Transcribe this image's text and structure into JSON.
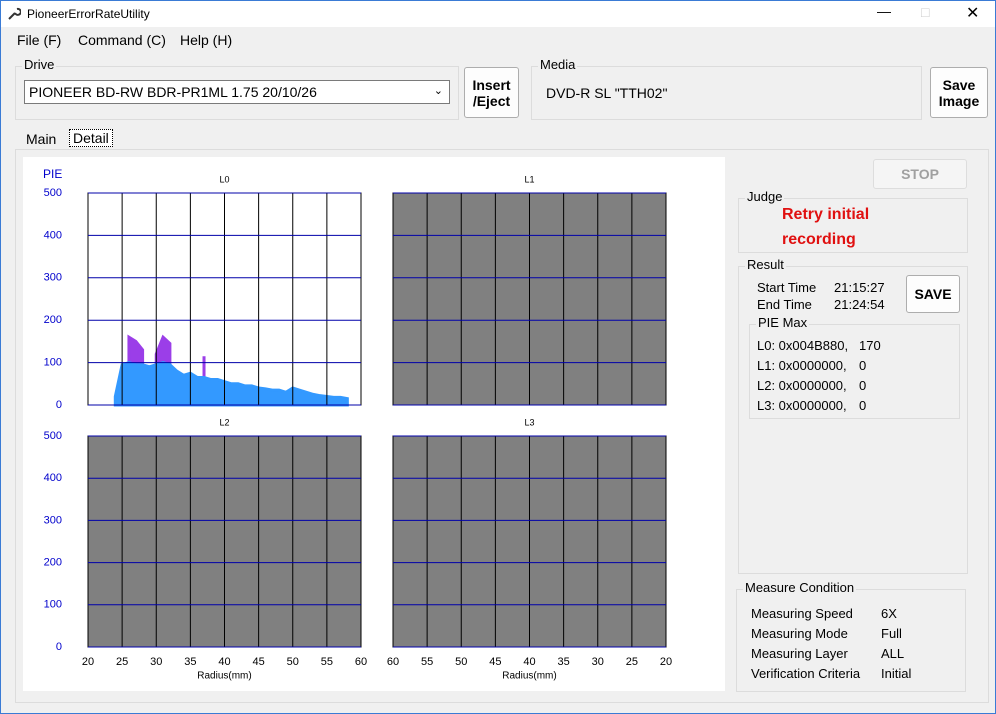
{
  "window": {
    "title": "PioneerErrorRateUtility"
  },
  "menu": [
    "File (F)",
    "Command (C)",
    "Help (H)"
  ],
  "drive": {
    "label": "Drive",
    "value": "PIONEER BD-RW BDR-PR1ML 1.75 20/10/26",
    "button": [
      "Insert",
      "/Eject"
    ]
  },
  "media": {
    "label": "Media",
    "value": "DVD-R SL \"TTH02\"",
    "button": [
      "Save",
      "Image"
    ]
  },
  "tabs": [
    "Main",
    "Detail"
  ],
  "chart_data": [
    {
      "type": "area",
      "title": "L0",
      "ylabel": "PIE",
      "x": [
        24,
        25,
        26,
        27,
        28,
        29,
        30,
        31,
        32,
        33,
        34,
        35,
        36,
        37,
        38,
        39,
        40,
        41,
        42,
        43,
        44,
        45,
        46,
        47,
        48,
        49,
        50,
        51,
        52,
        53,
        54,
        55,
        56,
        57,
        58
      ],
      "series": [
        {
          "color": "#9b3ee8",
          "values": [
            null,
            null,
            160,
            150,
            130,
            null,
            120,
            160,
            145,
            null,
            null,
            null,
            null,
            115,
            null,
            null,
            null,
            null,
            null,
            null,
            null,
            null,
            null,
            null,
            null,
            null,
            null,
            null,
            null,
            null,
            null,
            null,
            null,
            null,
            null
          ]
        },
        {
          "color": "#3399ff",
          "values": [
            20,
            95,
            100,
            95,
            95,
            90,
            95,
            100,
            95,
            80,
            70,
            75,
            65,
            65,
            60,
            60,
            55,
            50,
            50,
            45,
            45,
            40,
            38,
            35,
            35,
            30,
            40,
            35,
            30,
            25,
            22,
            20,
            18,
            18,
            15
          ]
        }
      ],
      "xlim": [
        20,
        60
      ],
      "ylim": [
        0,
        500
      ],
      "xticks": [
        20,
        25,
        30,
        35,
        40,
        45,
        50,
        55,
        60
      ],
      "yticks": [
        0,
        100,
        200,
        300,
        400,
        500
      ],
      "xtick_labels": false
    },
    {
      "type": "area",
      "title": "L1",
      "background": "#808080",
      "xlim": [
        60,
        20
      ],
      "ylim": [
        0,
        500
      ],
      "xticks": [
        60,
        55,
        50,
        45,
        40,
        35,
        30,
        25,
        20
      ],
      "yticks": [
        0,
        100,
        200,
        300,
        400,
        500
      ],
      "xtick_labels": false,
      "ytick_labels": false
    },
    {
      "type": "area",
      "title": "L2",
      "xlabel": "Radius(mm)",
      "background": "#808080",
      "xlim": [
        20,
        60
      ],
      "ylim": [
        0,
        500
      ],
      "xticks": [
        20,
        25,
        30,
        35,
        40,
        45,
        50,
        55,
        60
      ],
      "yticks": [
        0,
        100,
        200,
        300,
        400,
        500
      ]
    },
    {
      "type": "area",
      "title": "L3",
      "xlabel": "Radius(mm)",
      "background": "#808080",
      "xlim": [
        60,
        20
      ],
      "ylim": [
        0,
        500
      ],
      "xticks": [
        60,
        55,
        50,
        45,
        40,
        35,
        30,
        25,
        20
      ],
      "yticks": [
        0,
        100,
        200,
        300,
        400,
        500
      ],
      "ytick_labels": false
    }
  ],
  "stop": "STOP",
  "judge": {
    "label": "Judge",
    "text": [
      "Retry initial",
      "recording"
    ]
  },
  "result": {
    "label": "Result",
    "rows": [
      [
        "Start Time",
        "21:15:27"
      ],
      [
        "End Time",
        "21:24:54"
      ]
    ],
    "button": "SAVE",
    "pie_max": {
      "label": "PIE Max",
      "rows": [
        [
          "L0: 0x004B880,",
          170
        ],
        [
          "L1: 0x0000000,",
          0
        ],
        [
          "L2: 0x0000000,",
          0
        ],
        [
          "L3: 0x0000000,",
          0
        ]
      ]
    }
  },
  "measure": {
    "label": "Measure Condition",
    "rows": [
      [
        "Measuring Speed",
        "6X"
      ],
      [
        "Measuring Mode",
        "Full"
      ],
      [
        "Measuring Layer",
        "ALL"
      ],
      [
        "Verification Criteria",
        "Initial"
      ]
    ]
  }
}
